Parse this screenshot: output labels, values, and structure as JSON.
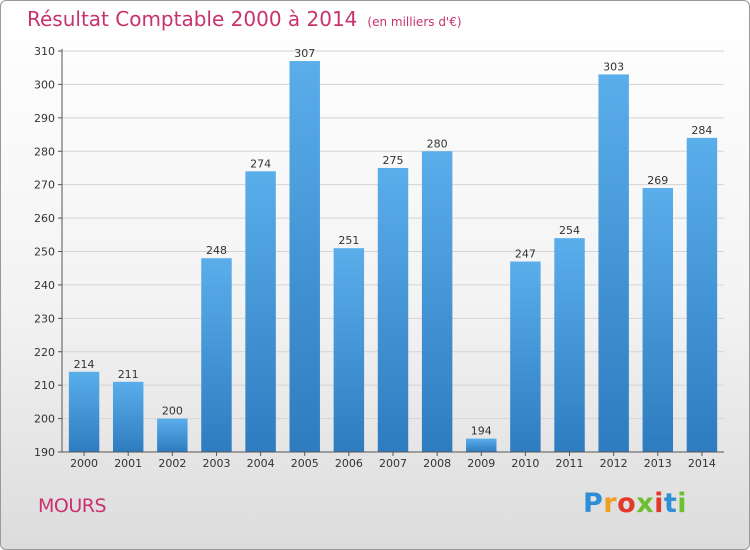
{
  "header": {
    "title": "Résultat Comptable 2000 à 2014",
    "unit": "(en milliers d'€)"
  },
  "footer": {
    "commune": "MOURS",
    "logo_letters": [
      "P",
      "r",
      "o",
      "x",
      "i",
      "t",
      "i"
    ],
    "logo_colors": [
      "#2e8fd6",
      "#f0a020",
      "#e23a2a",
      "#6cbf2e",
      "#e23a2a",
      "#2e8fd6",
      "#6cbf2e"
    ]
  },
  "colors": {
    "bar_light": "#5aaeea",
    "bar_dark": "#2e7cc0",
    "title": "#c8326e",
    "grid": "#d4d4d4",
    "text": "#333333"
  },
  "chart_data": {
    "type": "bar",
    "title": "Résultat Comptable 2000 à 2014",
    "subtitle": "(en milliers d'€)",
    "categories": [
      "2000",
      "2001",
      "2002",
      "2003",
      "2004",
      "2005",
      "2006",
      "2007",
      "2008",
      "2009",
      "2010",
      "2011",
      "2012",
      "2013",
      "2014"
    ],
    "values": [
      214,
      211,
      200,
      248,
      274,
      307,
      251,
      275,
      280,
      194,
      247,
      254,
      303,
      269,
      284
    ],
    "ylim": [
      190,
      310
    ],
    "yticks": [
      190,
      200,
      210,
      220,
      230,
      240,
      250,
      260,
      270,
      280,
      290,
      300,
      310
    ],
    "grid": true,
    "data_labels": true
  }
}
